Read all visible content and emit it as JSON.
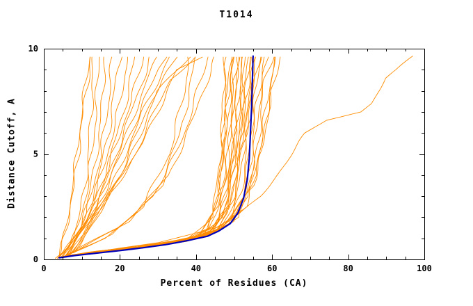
{
  "chart_data": {
    "type": "line",
    "title": "T1014",
    "xlabel": "Percent of Residues (CA)",
    "ylabel": "Distance Cutoff, A",
    "xlim": [
      0,
      100
    ],
    "ylim": [
      0,
      10
    ],
    "x_major_ticks": [
      0,
      20,
      40,
      60,
      80,
      100
    ],
    "x_minor_step": 5,
    "y_major_ticks": [
      0,
      5,
      10
    ],
    "y_minor_step": 1,
    "grid": false,
    "legend": "none",
    "colors": {
      "models": "#FF8C00",
      "highlight": "#0000BB",
      "axis": "#000000",
      "background": "#FFFFFF"
    },
    "series": [
      {
        "name": "highlighted-model",
        "color_key": "highlight",
        "points": [
          [
            4,
            0.08
          ],
          [
            8,
            0.18
          ],
          [
            14,
            0.3
          ],
          [
            20,
            0.42
          ],
          [
            26,
            0.55
          ],
          [
            32,
            0.7
          ],
          [
            38,
            0.9
          ],
          [
            43,
            1.1
          ],
          [
            46,
            1.35
          ],
          [
            49,
            1.7
          ],
          [
            51,
            2.2
          ],
          [
            52.5,
            2.9
          ],
          [
            53.5,
            3.8
          ],
          [
            54,
            4.8
          ],
          [
            54.3,
            6.0
          ],
          [
            54.6,
            7.2
          ],
          [
            54.8,
            8.4
          ],
          [
            55,
            9.65
          ]
        ]
      }
    ],
    "model_series": [
      [
        [
          3,
          0.05
        ],
        [
          6,
          0.5
        ],
        [
          8,
          1.2
        ],
        [
          10,
          2.5
        ],
        [
          11.5,
          4.5
        ],
        [
          12.5,
          7
        ],
        [
          13,
          9.6
        ]
      ],
      [
        [
          3.5,
          0.05
        ],
        [
          7,
          0.7
        ],
        [
          9,
          1.5
        ],
        [
          11,
          3
        ],
        [
          13,
          5.5
        ],
        [
          14,
          8
        ],
        [
          14.5,
          9.6
        ]
      ],
      [
        [
          4,
          0.1
        ],
        [
          8,
          1
        ],
        [
          11,
          2.2
        ],
        [
          13,
          4
        ],
        [
          15,
          6.5
        ],
        [
          16,
          9.6
        ]
      ],
      [
        [
          4,
          0.1
        ],
        [
          9,
          1.2
        ],
        [
          12,
          2.8
        ],
        [
          15,
          5
        ],
        [
          17,
          7.5
        ],
        [
          18,
          9.6
        ]
      ],
      [
        [
          4.5,
          0.1
        ],
        [
          10,
          1.5
        ],
        [
          14,
          3.5
        ],
        [
          17,
          6
        ],
        [
          19,
          8.5
        ],
        [
          20,
          9.6
        ]
      ],
      [
        [
          5,
          0.1
        ],
        [
          11,
          1.8
        ],
        [
          15,
          4
        ],
        [
          19,
          6.5
        ],
        [
          21,
          8.5
        ],
        [
          22,
          9.6
        ]
      ],
      [
        [
          5,
          0.15
        ],
        [
          12,
          2
        ],
        [
          17,
          4.5
        ],
        [
          21,
          7
        ],
        [
          24,
          9.6
        ]
      ],
      [
        [
          5.5,
          0.15
        ],
        [
          13,
          2.2
        ],
        [
          18,
          5
        ],
        [
          23,
          7.5
        ],
        [
          26,
          9.6
        ]
      ],
      [
        [
          6,
          0.2
        ],
        [
          14,
          2.5
        ],
        [
          20,
          5.5
        ],
        [
          25,
          8
        ],
        [
          28,
          9.6
        ]
      ],
      [
        [
          6,
          0.2
        ],
        [
          15,
          3
        ],
        [
          22,
          6
        ],
        [
          27,
          8.5
        ],
        [
          30,
          9.6
        ]
      ],
      [
        [
          6.5,
          0.2
        ],
        [
          16,
          3.2
        ],
        [
          24,
          6.5
        ],
        [
          30,
          9
        ],
        [
          32,
          9.6
        ]
      ],
      [
        [
          7,
          0.25
        ],
        [
          18,
          3.5
        ],
        [
          26,
          7
        ],
        [
          33,
          9.6
        ]
      ],
      [
        [
          7,
          0.25
        ],
        [
          20,
          4
        ],
        [
          28,
          7.5
        ],
        [
          35,
          9.6
        ]
      ],
      [
        [
          7.5,
          0.3
        ],
        [
          22,
          4.5
        ],
        [
          30,
          8
        ],
        [
          38,
          9.6
        ]
      ],
      [
        [
          8,
          0.3
        ],
        [
          24,
          5
        ],
        [
          33,
          8.5
        ],
        [
          40,
          9.6
        ]
      ],
      [
        [
          8,
          0.35
        ],
        [
          26,
          5.5
        ],
        [
          35,
          9
        ],
        [
          42,
          9.6
        ]
      ],
      [
        [
          4,
          0.1
        ],
        [
          6,
          1.5
        ],
        [
          8,
          4
        ],
        [
          10,
          7
        ],
        [
          12,
          9.6
        ]
      ],
      [
        [
          4,
          0.1
        ],
        [
          7,
          2.5
        ],
        [
          9,
          5
        ],
        [
          11,
          8
        ],
        [
          12.5,
          9.6
        ]
      ],
      [
        [
          4,
          0.1
        ],
        [
          15,
          0.4
        ],
        [
          30,
          0.7
        ],
        [
          42,
          1.1
        ],
        [
          46,
          1.8
        ],
        [
          48,
          3
        ],
        [
          49,
          6
        ],
        [
          50,
          9.6
        ]
      ],
      [
        [
          4,
          0.1
        ],
        [
          18,
          0.45
        ],
        [
          33,
          0.75
        ],
        [
          44,
          1.2
        ],
        [
          47,
          2
        ],
        [
          49,
          4
        ],
        [
          50.5,
          7
        ],
        [
          51,
          9.6
        ]
      ],
      [
        [
          4.5,
          0.1
        ],
        [
          20,
          0.5
        ],
        [
          35,
          0.8
        ],
        [
          45,
          1.3
        ],
        [
          48,
          2.2
        ],
        [
          50,
          4.5
        ],
        [
          52,
          9.6
        ]
      ],
      [
        [
          4.5,
          0.1
        ],
        [
          22,
          0.5
        ],
        [
          37,
          0.85
        ],
        [
          46,
          1.4
        ],
        [
          49,
          2.5
        ],
        [
          51,
          5
        ],
        [
          53,
          9.6
        ]
      ],
      [
        [
          5,
          0.12
        ],
        [
          24,
          0.55
        ],
        [
          38,
          0.9
        ],
        [
          47,
          1.5
        ],
        [
          50,
          2.8
        ],
        [
          52,
          5.5
        ],
        [
          54,
          9.6
        ]
      ],
      [
        [
          5,
          0.12
        ],
        [
          25,
          0.6
        ],
        [
          40,
          1
        ],
        [
          48,
          1.6
        ],
        [
          51,
          3
        ],
        [
          53,
          6
        ],
        [
          55,
          9.6
        ]
      ],
      [
        [
          5,
          0.15
        ],
        [
          26,
          0.6
        ],
        [
          41,
          1.05
        ],
        [
          49,
          1.7
        ],
        [
          52,
          3.2
        ],
        [
          54,
          6.5
        ],
        [
          56,
          9.6
        ]
      ],
      [
        [
          5.5,
          0.15
        ],
        [
          28,
          0.65
        ],
        [
          42,
          1.1
        ],
        [
          50,
          1.8
        ],
        [
          53,
          3.5
        ],
        [
          55,
          7
        ],
        [
          57,
          9.6
        ]
      ],
      [
        [
          5.5,
          0.15
        ],
        [
          30,
          0.7
        ],
        [
          43,
          1.15
        ],
        [
          51,
          2
        ],
        [
          54,
          4
        ],
        [
          56,
          7.5
        ],
        [
          58,
          9.6
        ]
      ],
      [
        [
          6,
          0.15
        ],
        [
          32,
          0.75
        ],
        [
          44,
          1.2
        ],
        [
          52,
          2.2
        ],
        [
          55,
          4.5
        ],
        [
          57,
          8
        ],
        [
          59,
          9.6
        ]
      ],
      [
        [
          6,
          0.18
        ],
        [
          34,
          0.8
        ],
        [
          45,
          1.3
        ],
        [
          53,
          2.5
        ],
        [
          56,
          5
        ],
        [
          58,
          8.5
        ],
        [
          60,
          9.6
        ]
      ],
      [
        [
          6,
          0.18
        ],
        [
          36,
          0.85
        ],
        [
          46,
          1.4
        ],
        [
          54,
          3
        ],
        [
          57,
          5.5
        ],
        [
          60,
          9
        ],
        [
          61,
          9.6
        ]
      ],
      [
        [
          6.5,
          0.2
        ],
        [
          38,
          0.9
        ],
        [
          47,
          1.5
        ],
        [
          55,
          3.5
        ],
        [
          58,
          6
        ],
        [
          61,
          9.6
        ]
      ],
      [
        [
          6.5,
          0.2
        ],
        [
          40,
          1
        ],
        [
          48,
          1.7
        ],
        [
          56,
          4
        ],
        [
          59,
          7
        ],
        [
          62,
          9.6
        ]
      ],
      [
        [
          4,
          0.1
        ],
        [
          12,
          0.35
        ],
        [
          25,
          0.6
        ],
        [
          38,
          1
        ],
        [
          44,
          2
        ],
        [
          46,
          4
        ],
        [
          47,
          7
        ],
        [
          47.5,
          9.6
        ]
      ],
      [
        [
          4,
          0.1
        ],
        [
          14,
          0.4
        ],
        [
          28,
          0.65
        ],
        [
          40,
          1.1
        ],
        [
          45,
          2.2
        ],
        [
          47,
          5
        ],
        [
          48,
          9.6
        ]
      ],
      [
        [
          4,
          0.1
        ],
        [
          16,
          0.42
        ],
        [
          30,
          0.7
        ],
        [
          41,
          1.15
        ],
        [
          45.5,
          2.5
        ],
        [
          47.5,
          6
        ],
        [
          49,
          9.6
        ]
      ],
      [
        [
          4.5,
          0.1
        ],
        [
          17,
          0.45
        ],
        [
          32,
          0.72
        ],
        [
          42,
          1.2
        ],
        [
          46,
          3
        ],
        [
          48,
          7
        ],
        [
          49.5,
          9.6
        ]
      ],
      [
        [
          5,
          0.12
        ],
        [
          19,
          0.5
        ],
        [
          34,
          0.78
        ],
        [
          43,
          1.3
        ],
        [
          47,
          3.5
        ],
        [
          49,
          8
        ],
        [
          50,
          9.6
        ]
      ],
      [
        [
          5,
          0.12
        ],
        [
          21,
          0.52
        ],
        [
          36,
          0.82
        ],
        [
          44,
          1.5
        ],
        [
          48,
          4
        ],
        [
          50,
          8.5
        ],
        [
          51,
          9.6
        ]
      ],
      [
        [
          5.5,
          0.14
        ],
        [
          23,
          0.55
        ],
        [
          37,
          0.85
        ],
        [
          45,
          1.6
        ],
        [
          49,
          4.5
        ],
        [
          51,
          9.6
        ]
      ],
      [
        [
          5.5,
          0.14
        ],
        [
          27,
          0.62
        ],
        [
          39,
          0.95
        ],
        [
          46,
          1.8
        ],
        [
          50,
          5
        ],
        [
          52.5,
          9.6
        ]
      ],
      [
        [
          6,
          0.16
        ],
        [
          29,
          0.68
        ],
        [
          41,
          1.05
        ],
        [
          47,
          2
        ],
        [
          51,
          5.5
        ],
        [
          53.5,
          9.6
        ]
      ],
      [
        [
          6,
          0.16
        ],
        [
          31,
          0.72
        ],
        [
          42,
          1.1
        ],
        [
          48,
          2.3
        ],
        [
          52,
          6
        ],
        [
          54.5,
          9.6
        ]
      ],
      [
        [
          6.5,
          0.18
        ],
        [
          33,
          0.78
        ],
        [
          43,
          1.2
        ],
        [
          49,
          2.6
        ],
        [
          53,
          6.5
        ],
        [
          55.5,
          9.6
        ]
      ],
      [
        [
          6.5,
          0.18
        ],
        [
          35,
          0.82
        ],
        [
          44,
          1.3
        ],
        [
          50,
          3
        ],
        [
          54,
          7
        ],
        [
          56.5,
          9.6
        ]
      ],
      [
        [
          5,
          0.12
        ],
        [
          16,
          1
        ],
        [
          26,
          2.5
        ],
        [
          33,
          5
        ],
        [
          37,
          8
        ],
        [
          38,
          9.6
        ]
      ],
      [
        [
          5.5,
          0.15
        ],
        [
          18,
          1.2
        ],
        [
          29,
          3
        ],
        [
          36,
          6
        ],
        [
          40,
          9.6
        ]
      ],
      [
        [
          6,
          0.18
        ],
        [
          20,
          1.5
        ],
        [
          31,
          3.5
        ],
        [
          38,
          6.5
        ],
        [
          43,
          9.6
        ]
      ],
      [
        [
          6,
          0.2
        ],
        [
          22,
          1.8
        ],
        [
          33,
          4
        ],
        [
          40,
          7
        ],
        [
          45,
          9.6
        ]
      ],
      [
        [
          5,
          0.15
        ],
        [
          30,
          0.8
        ],
        [
          45,
          1.5
        ],
        [
          52,
          2.2
        ],
        [
          57,
          3
        ],
        [
          62,
          4.2
        ],
        [
          66,
          5.2
        ],
        [
          69,
          6
        ],
        [
          74,
          6.6
        ],
        [
          83,
          7
        ],
        [
          86,
          7.4
        ],
        [
          88,
          8
        ],
        [
          90,
          8.6
        ],
        [
          93,
          9
        ],
        [
          97,
          9.65
        ]
      ]
    ]
  }
}
